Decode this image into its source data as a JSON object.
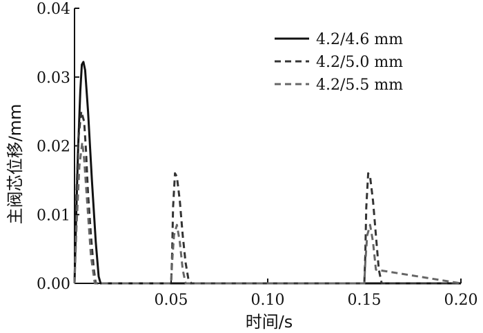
{
  "chart_data": {
    "type": "line",
    "title": "",
    "xlabel": "时间/s",
    "ylabel": "主阀芯位移/mm",
    "xlim": [
      0,
      0.2
    ],
    "ylim": [
      0,
      0.04
    ],
    "x_ticks": [
      0.05,
      0.1,
      0.15,
      0.2
    ],
    "x_tick_labels": [
      "0.05",
      "0.10",
      "0.15",
      "0.20"
    ],
    "y_ticks": [
      0,
      0.01,
      0.02,
      0.03,
      0.04
    ],
    "y_tick_labels": [
      "0.00",
      "0.01",
      "0.02",
      "0.03",
      "0.04"
    ],
    "legend_position": "top-right",
    "grid": false,
    "series": [
      {
        "name": "4.2/4.6 mm",
        "style": "solid",
        "color": "#111111",
        "x": [
          0.0,
          0.0008,
          0.0018,
          0.003,
          0.0038,
          0.0046,
          0.0055,
          0.007,
          0.009,
          0.011,
          0.0125,
          0.0135,
          0.2
        ],
        "y": [
          0.0,
          0.009,
          0.019,
          0.028,
          0.0318,
          0.0322,
          0.031,
          0.025,
          0.015,
          0.006,
          0.001,
          0.0,
          0.0
        ]
      },
      {
        "name": "4.2/5.0 mm",
        "style": "dashed",
        "color": "#333333",
        "x": [
          0.0,
          0.001,
          0.002,
          0.0035,
          0.005,
          0.006,
          0.007,
          0.0085,
          0.01,
          0.011,
          0.05,
          0.0505,
          0.051,
          0.052,
          0.053,
          0.0545,
          0.056,
          0.0575,
          0.059,
          0.0605,
          0.15,
          0.1505,
          0.151,
          0.152,
          0.153,
          0.1545,
          0.156,
          0.1575,
          0.159,
          0.2
        ],
        "y": [
          0.0,
          0.013,
          0.021,
          0.025,
          0.0235,
          0.019,
          0.013,
          0.007,
          0.002,
          0.0,
          0.0,
          0.004,
          0.011,
          0.016,
          0.0155,
          0.012,
          0.007,
          0.003,
          0.0005,
          0.0,
          0.0,
          0.004,
          0.011,
          0.016,
          0.0155,
          0.012,
          0.007,
          0.002,
          0.0,
          0.0
        ]
      },
      {
        "name": "4.2/5.5 mm",
        "style": "dashed",
        "color": "#666666",
        "x": [
          0.0,
          0.001,
          0.0025,
          0.004,
          0.005,
          0.0065,
          0.0085,
          0.0105,
          0.05,
          0.0505,
          0.0515,
          0.053,
          0.0545,
          0.056,
          0.0575,
          0.15,
          0.1505,
          0.1515,
          0.153,
          0.1545,
          0.156,
          0.2
        ],
        "y": [
          0.0,
          0.008,
          0.017,
          0.0205,
          0.018,
          0.012,
          0.004,
          0.0,
          0.0,
          0.003,
          0.007,
          0.0085,
          0.006,
          0.002,
          0.0,
          0.0,
          0.003,
          0.007,
          0.0085,
          0.006,
          0.002,
          0.0
        ]
      }
    ]
  }
}
